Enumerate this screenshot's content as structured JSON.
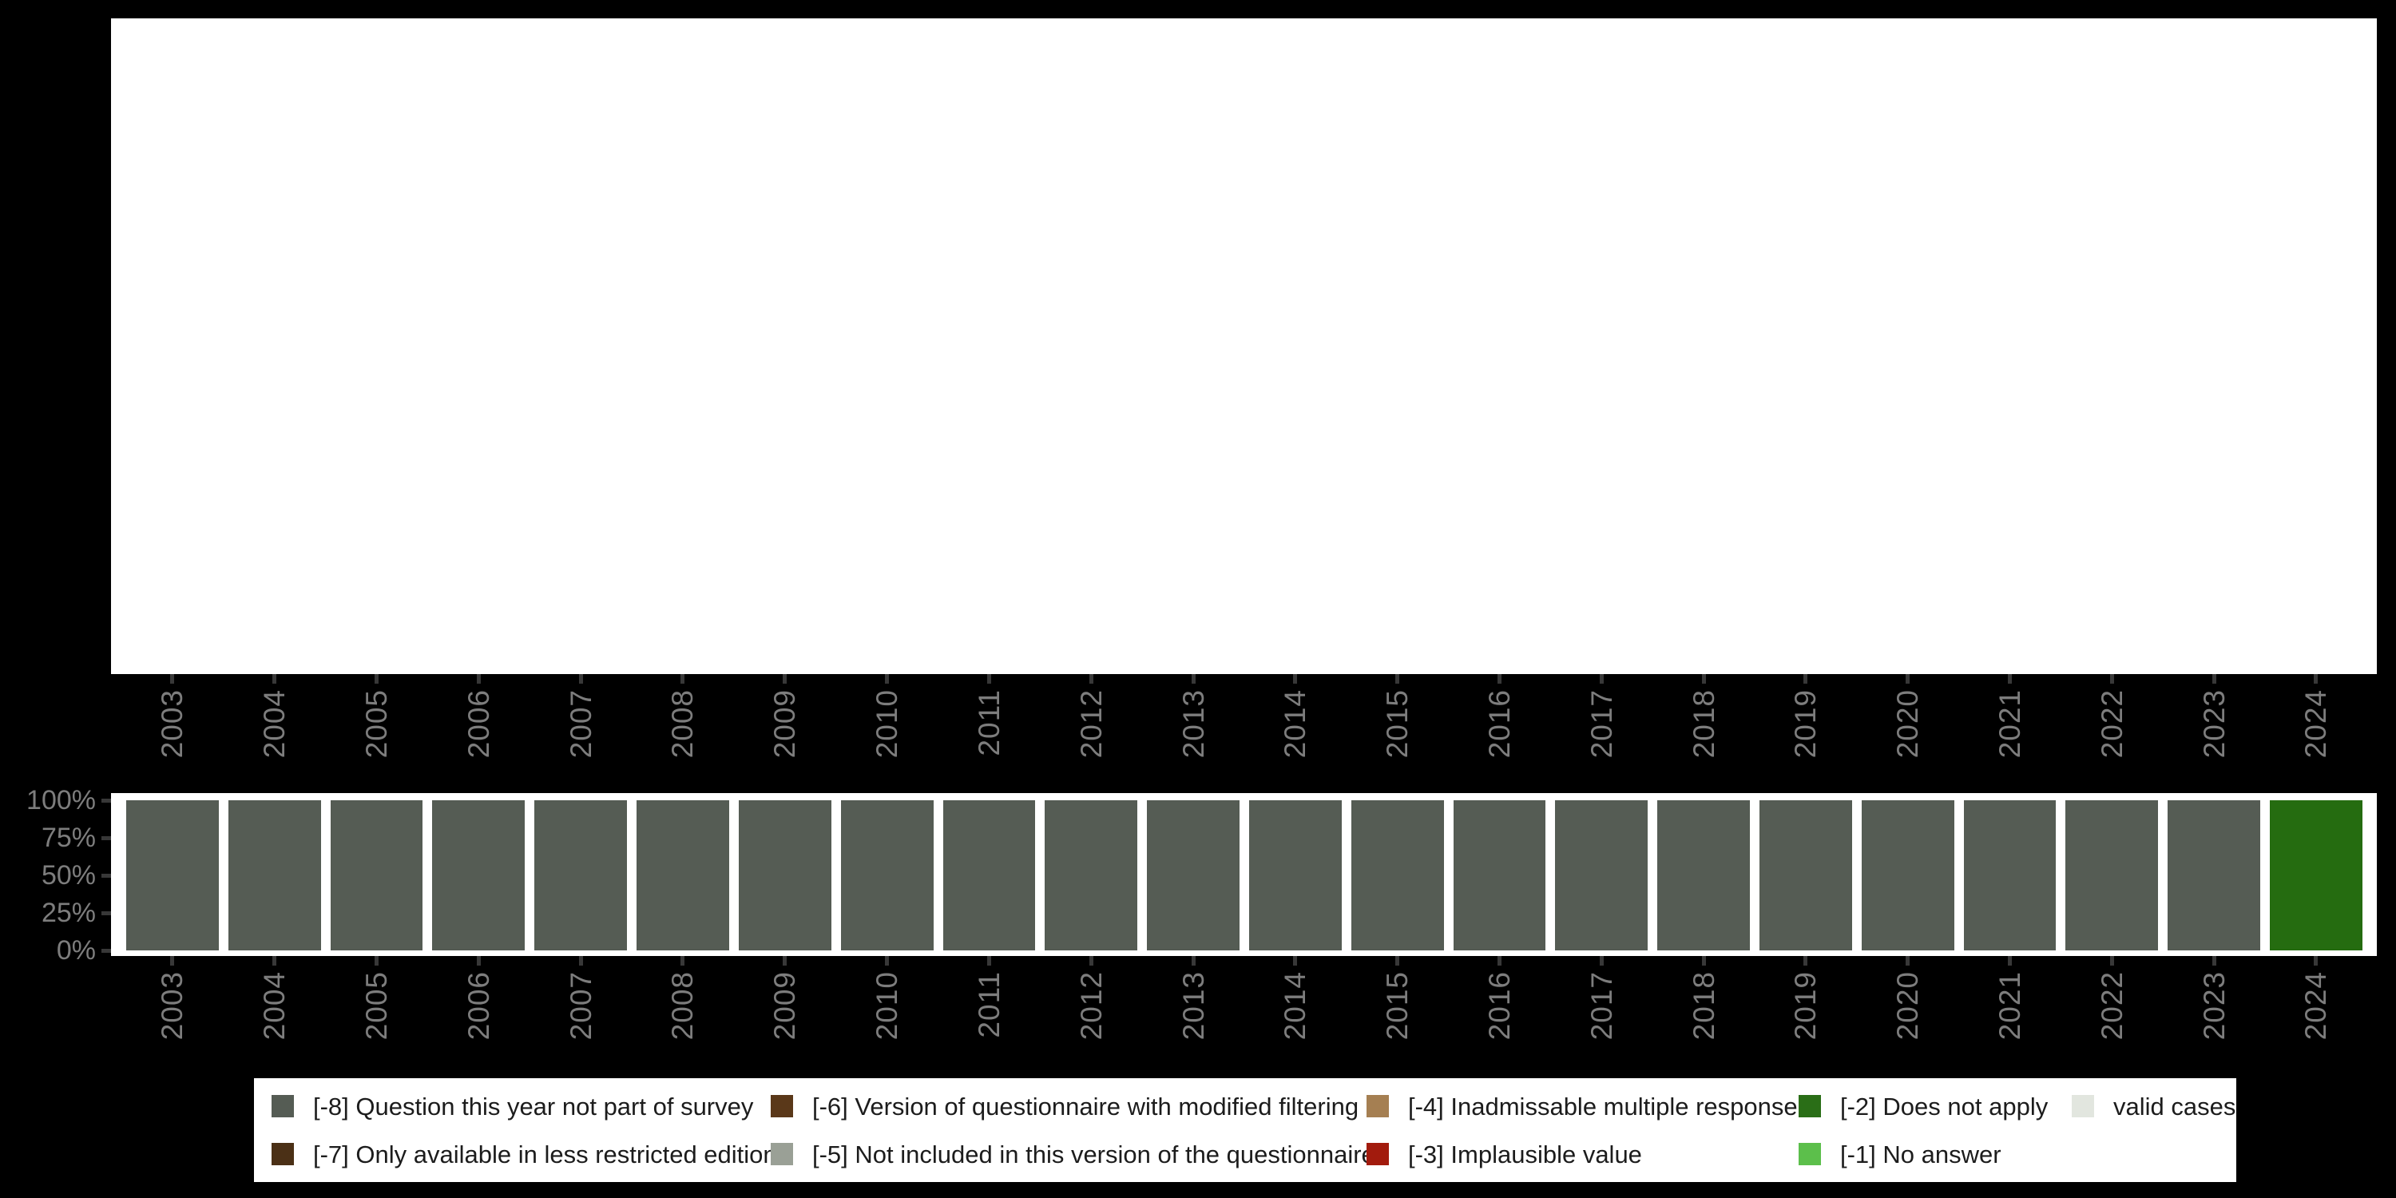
{
  "colors": {
    "background": "#000000",
    "panel": "#ffffff",
    "bar_gray": "#555c54",
    "bar_green": "#256c10",
    "axis_text": "#7d7d7d",
    "tick": "#383838",
    "legend_text": "#1c1c1c"
  },
  "axis": {
    "years": [
      "2003",
      "2004",
      "2005",
      "2006",
      "2007",
      "2008",
      "2009",
      "2010",
      "2011",
      "2012",
      "2013",
      "2014",
      "2015",
      "2016",
      "2017",
      "2018",
      "2019",
      "2020",
      "2021",
      "2022",
      "2023",
      "2024"
    ],
    "y_ticks": [
      "100%",
      "75%",
      "50%",
      "25%",
      "0%"
    ]
  },
  "strip": {
    "bars": [
      {
        "year": "2003",
        "category": "[-8] Question this year not part of survey",
        "color": "#555c54",
        "value_pct": 100
      },
      {
        "year": "2004",
        "category": "[-8] Question this year not part of survey",
        "color": "#555c54",
        "value_pct": 100
      },
      {
        "year": "2005",
        "category": "[-8] Question this year not part of survey",
        "color": "#555c54",
        "value_pct": 100
      },
      {
        "year": "2006",
        "category": "[-8] Question this year not part of survey",
        "color": "#555c54",
        "value_pct": 100
      },
      {
        "year": "2007",
        "category": "[-8] Question this year not part of survey",
        "color": "#555c54",
        "value_pct": 100
      },
      {
        "year": "2008",
        "category": "[-8] Question this year not part of survey",
        "color": "#555c54",
        "value_pct": 100
      },
      {
        "year": "2009",
        "category": "[-8] Question this year not part of survey",
        "color": "#555c54",
        "value_pct": 100
      },
      {
        "year": "2010",
        "category": "[-8] Question this year not part of survey",
        "color": "#555c54",
        "value_pct": 100
      },
      {
        "year": "2011",
        "category": "[-8] Question this year not part of survey",
        "color": "#555c54",
        "value_pct": 100
      },
      {
        "year": "2012",
        "category": "[-8] Question this year not part of survey",
        "color": "#555c54",
        "value_pct": 100
      },
      {
        "year": "2013",
        "category": "[-8] Question this year not part of survey",
        "color": "#555c54",
        "value_pct": 100
      },
      {
        "year": "2014",
        "category": "[-8] Question this year not part of survey",
        "color": "#555c54",
        "value_pct": 100
      },
      {
        "year": "2015",
        "category": "[-8] Question this year not part of survey",
        "color": "#555c54",
        "value_pct": 100
      },
      {
        "year": "2016",
        "category": "[-8] Question this year not part of survey",
        "color": "#555c54",
        "value_pct": 100
      },
      {
        "year": "2017",
        "category": "[-8] Question this year not part of survey",
        "color": "#555c54",
        "value_pct": 100
      },
      {
        "year": "2018",
        "category": "[-8] Question this year not part of survey",
        "color": "#555c54",
        "value_pct": 100
      },
      {
        "year": "2019",
        "category": "[-8] Question this year not part of survey",
        "color": "#555c54",
        "value_pct": 100
      },
      {
        "year": "2020",
        "category": "[-8] Question this year not part of survey",
        "color": "#555c54",
        "value_pct": 100
      },
      {
        "year": "2021",
        "category": "[-8] Question this year not part of survey",
        "color": "#555c54",
        "value_pct": 100
      },
      {
        "year": "2022",
        "category": "[-8] Question this year not part of survey",
        "color": "#555c54",
        "value_pct": 100
      },
      {
        "year": "2023",
        "category": "[-8] Question this year not part of survey",
        "color": "#555c54",
        "value_pct": 100
      },
      {
        "year": "2024",
        "category": "[-2] Does not apply",
        "color": "#256c10",
        "value_pct": 100
      }
    ]
  },
  "legend": {
    "columns": [
      {
        "items": [
          {
            "label": "[-8] Question this year not part of survey",
            "color": "#555c54"
          },
          {
            "label": "[-7] Only available in less restricted edition",
            "color": "#4b3016"
          }
        ]
      },
      {
        "items": [
          {
            "label": "[-6] Version of questionnaire with modified filtering",
            "color": "#5a3819"
          },
          {
            "label": "[-5] Not included in this version of the questionnaire",
            "color": "#9aa096"
          }
        ]
      },
      {
        "items": [
          {
            "label": "[-4] Inadmissable multiple response",
            "color": "#a57f52"
          },
          {
            "label": "[-3] Implausible value",
            "color": "#a21b0d"
          }
        ]
      },
      {
        "items": [
          {
            "label": "[-2] Does not apply",
            "color": "#2a6e17"
          },
          {
            "label": "[-1] No answer",
            "color": "#5cbf4b"
          }
        ]
      },
      {
        "items": [
          {
            "label": "valid cases",
            "color": "#e2e6df"
          }
        ]
      }
    ]
  },
  "chart_data": [
    {
      "type": "bar",
      "panel": "top",
      "title": "",
      "categories": [
        "2003",
        "2004",
        "2005",
        "2006",
        "2007",
        "2008",
        "2009",
        "2010",
        "2011",
        "2012",
        "2013",
        "2014",
        "2015",
        "2016",
        "2017",
        "2018",
        "2019",
        "2020",
        "2021",
        "2022",
        "2023",
        "2024"
      ],
      "series": [],
      "note": "empty white plot panel, only x-axis tick marks and rotated year labels below it"
    },
    {
      "type": "bar",
      "panel": "bottom-strip",
      "subtype": "stacked_percent",
      "title": "",
      "xlabel": "",
      "ylabel": "",
      "categories": [
        "2003",
        "2004",
        "2005",
        "2006",
        "2007",
        "2008",
        "2009",
        "2010",
        "2011",
        "2012",
        "2013",
        "2014",
        "2015",
        "2016",
        "2017",
        "2018",
        "2019",
        "2020",
        "2021",
        "2022",
        "2023",
        "2024"
      ],
      "series": [
        {
          "name": "[-8] Question this year not part of survey",
          "color": "#555c54",
          "values": [
            100,
            100,
            100,
            100,
            100,
            100,
            100,
            100,
            100,
            100,
            100,
            100,
            100,
            100,
            100,
            100,
            100,
            100,
            100,
            100,
            100,
            0
          ]
        },
        {
          "name": "[-2] Does not apply",
          "color": "#256c10",
          "values": [
            0,
            0,
            0,
            0,
            0,
            0,
            0,
            0,
            0,
            0,
            0,
            0,
            0,
            0,
            0,
            0,
            0,
            0,
            0,
            0,
            0,
            100
          ]
        }
      ],
      "ylim": [
        0,
        100
      ],
      "yticks": [
        "0%",
        "25%",
        "50%",
        "75%",
        "100%"
      ],
      "grid": false,
      "legend_position": "bottom"
    }
  ]
}
